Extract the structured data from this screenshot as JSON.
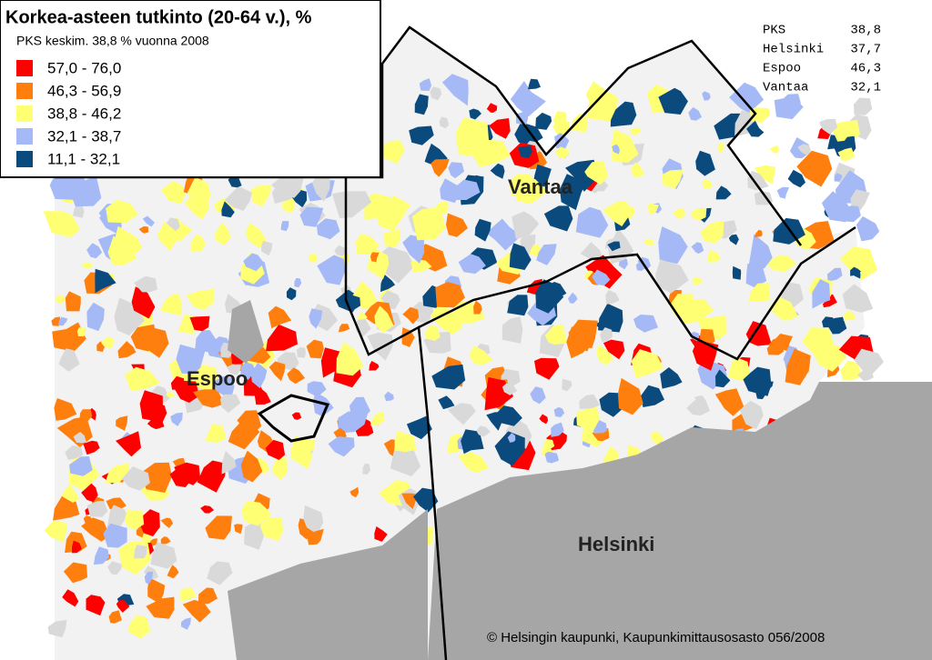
{
  "legend": {
    "title": "Korkea-asteen tutkinto (20-64 v.), %",
    "subtitle": "PKS keskim. 38,8 % vuonna 2008",
    "classes": [
      {
        "label": "57,0 - 76,0",
        "color": "#ff0000"
      },
      {
        "label": "46,3 - 56,9",
        "color": "#ff7f0e"
      },
      {
        "label": "38,8 - 46,2",
        "color": "#ffff73"
      },
      {
        "label": "32,1 - 38,7",
        "color": "#a4b9f5"
      },
      {
        "label": "11,1 - 32,1",
        "color": "#0b4a7d"
      }
    ]
  },
  "averages": {
    "rows": [
      [
        "PKS",
        "38,8"
      ],
      [
        "Helsinki",
        "37,7"
      ],
      [
        "Espoo",
        "46,3"
      ],
      [
        "Vantaa",
        "32,1"
      ]
    ]
  },
  "places": [
    "Vantaa",
    "Espoo",
    "Helsinki"
  ],
  "credit": "© Helsingin kaupunki, Kaupunkimittausosasto 056/2008"
}
